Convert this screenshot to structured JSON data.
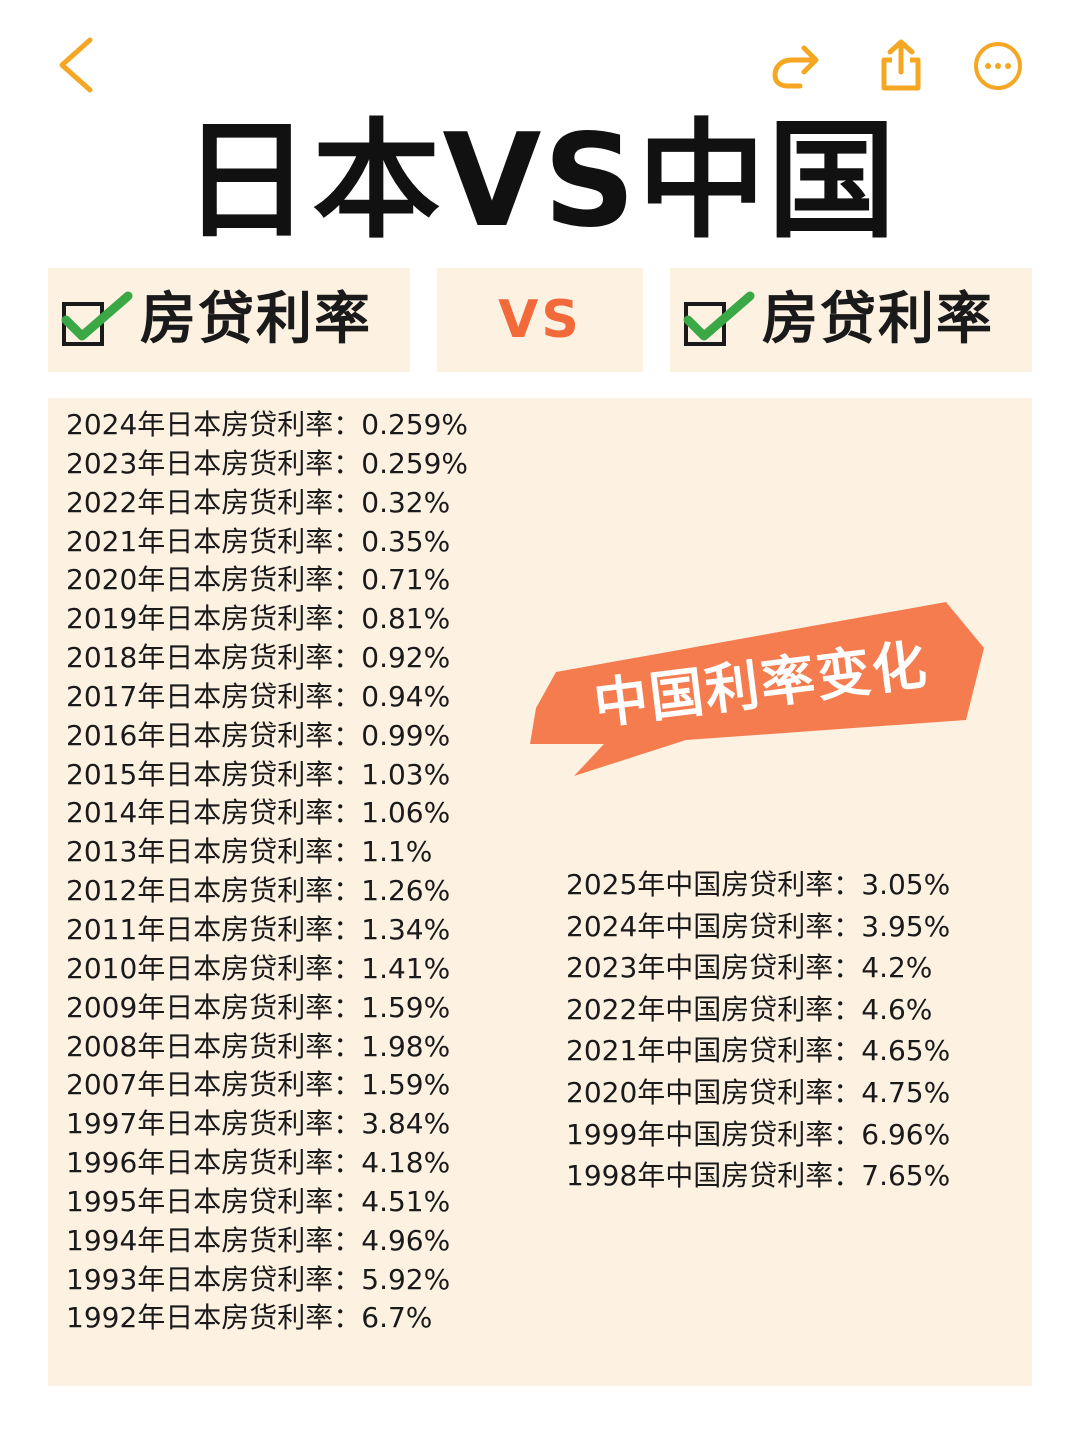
{
  "toolbar": {
    "back_icon": "back-chevron-icon",
    "forward_icon": "forward-arrow-icon",
    "share_icon": "share-icon",
    "more_icon": "more-icon",
    "accent_color": "#f5a623"
  },
  "title": "日本VS中国",
  "compare": {
    "left_label": "房贷利率",
    "vs_label": "VS",
    "right_label": "房贷利率",
    "check_icon": "checkmark-icon",
    "check_color": "#3aa845",
    "box_color": "#fdf1e2",
    "vs_color": "#f26a3a"
  },
  "bubble": {
    "text": "中国利率变化",
    "color": "#f47c4e"
  },
  "japan_rates": [
    "2024年日本房贷利率：0.259%",
    "2023年日本房货利率：0.259%",
    "2022年日本房货利率：0.32%",
    "2021年日本房货利率：0.35%",
    "2020年日本房货利率：0.71%",
    "2019年日本房货利率：0.81%",
    "2018年日本房货利率：0.92%",
    "2017年日本房贷利率：0.94%",
    "2016年日本房贷利率：0.99%",
    "2015年日本房贷利率：1.03%",
    "2014年日本房贷利率：1.06%",
    "2013年日本房贷利率：1.1%",
    "2012年日本房货利率：1.26%",
    "2011年日本房货利率：1.34%",
    "2010年日本房贷利率：1.41%",
    "2009年日本房货利率：1.59%",
    "2008年日本房货利率：1.98%",
    "2007年日本房货利率：1.59%",
    "1997年日本房货利率：3.84%",
    "1996年日本房货利率：4.18%",
    "1995年日本房贷利率：4.51%",
    "1994年日本房货利率：4.96%",
    "1993年日本房贷利率：5.92%",
    "1992年日本房货利率：6.7%"
  ],
  "china_rates": [
    "2025年中国房贷利率：3.05%",
    "2024年中国房贷利率：3.95%",
    "2023年中国房贷利率：4.2%",
    "2022年中国房贷利率：4.6%",
    "2021年中国房贷利率：4.65%",
    "2020年中国房贷利率：4.75%",
    "1999年中国房贷利率：6.96%",
    "1998年中国房贷利率：7.65%"
  ]
}
